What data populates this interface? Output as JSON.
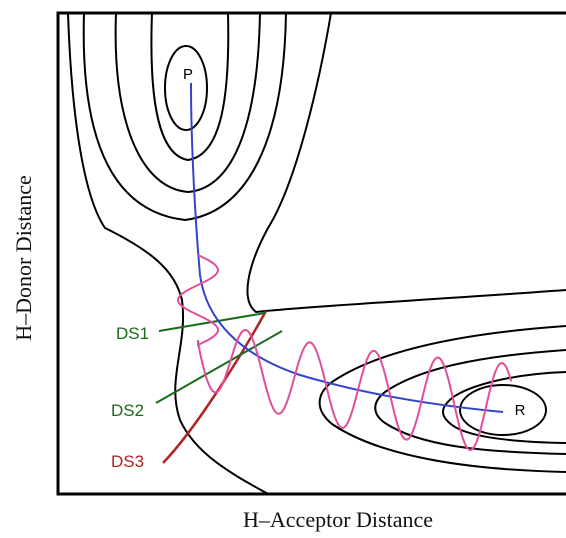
{
  "axes": {
    "x_label": "H–Acceptor Distance",
    "y_label": "H–Donor Distance"
  },
  "points": {
    "product": "P",
    "reactant": "R"
  },
  "dividing_surfaces": [
    {
      "label": "DS1",
      "color": "#1a6b1a"
    },
    {
      "label": "DS2",
      "color": "#1a6b1a"
    },
    {
      "label": "DS3",
      "color": "#b22222"
    }
  ],
  "colors": {
    "contours": "#000000",
    "reaction_path": "#3344cc",
    "trajectory": "#e0509a"
  }
}
